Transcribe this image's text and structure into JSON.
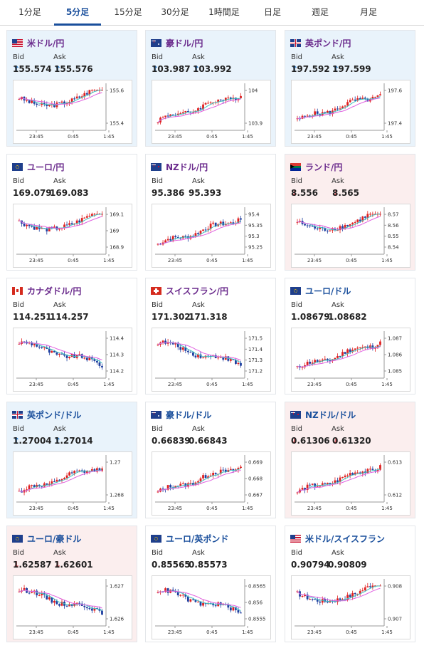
{
  "tabs": [
    {
      "label": "1分足",
      "active": false
    },
    {
      "label": "5分足",
      "active": true
    },
    {
      "label": "15分足",
      "active": false
    },
    {
      "label": "30分足",
      "active": false
    },
    {
      "label": "1時間足",
      "active": false
    },
    {
      "label": "日足",
      "active": false
    },
    {
      "label": "週足",
      "active": false
    },
    {
      "label": "月足",
      "active": false
    }
  ],
  "labels": {
    "bid": "Bid",
    "ask": "Ask"
  },
  "colors": {
    "up_card": "#e9f3fb",
    "down_card": "#fbeeee",
    "up_arrow": "#1e7bd6",
    "down_arrow": "#d9363e",
    "accent": "#1a4f9c",
    "candle_up": "#e02020",
    "candle_down": "#1f3fa0",
    "ma_pink": "#e060e0",
    "ma_teal": "#40c0c0"
  },
  "cards": [
    {
      "pair": "米ドル/円",
      "flag": "us",
      "bid": "155.574",
      "ask": "155.576",
      "dir": "up",
      "chart_data": {
        "type": "candlestick",
        "x_ticks": [
          "23:45",
          "0:45",
          "1:45"
        ],
        "y_ticks": [
          "155.6",
          "155.4"
        ],
        "ylim": [
          155.35,
          155.72
        ],
        "pattern": "vshape"
      }
    },
    {
      "pair": "豪ドル/円",
      "flag": "au",
      "bid": "103.987",
      "ask": "103.992",
      "dir": "up",
      "chart_data": {
        "type": "candlestick",
        "x_ticks": [
          "23:45",
          "0:45",
          "1:45"
        ],
        "y_ticks": [
          "104",
          "103.9"
        ],
        "ylim": [
          103.85,
          104.05
        ],
        "pattern": "uptrend"
      }
    },
    {
      "pair": "英ポンド/円",
      "flag": "gb",
      "bid": "197.592",
      "ask": "197.599",
      "dir": "up",
      "chart_data": {
        "type": "candlestick",
        "x_ticks": [
          "23:45",
          "0:45",
          "1:45"
        ],
        "y_ticks": [
          "197.6",
          "197.4"
        ],
        "ylim": [
          197.3,
          197.7
        ],
        "pattern": "uptrend"
      }
    },
    {
      "pair": "ユーロ/円",
      "flag": "eu",
      "bid": "169.079",
      "ask": "169.083",
      "dir": "none",
      "chart_data": {
        "type": "candlestick",
        "x_ticks": [
          "23:45",
          "0:45",
          "1:45"
        ],
        "y_ticks": [
          "169.1",
          "169",
          "168.9"
        ],
        "ylim": [
          168.85,
          169.15
        ],
        "pattern": "vshape"
      }
    },
    {
      "pair": "NZドル/円",
      "flag": "nz",
      "bid": "95.386",
      "ask": "95.393",
      "dir": "none",
      "chart_data": {
        "type": "candlestick",
        "x_ticks": [
          "23:45",
          "0:45",
          "1:45"
        ],
        "y_ticks": [
          "95.4",
          "95.35",
          "95.3",
          "95.25"
        ],
        "ylim": [
          95.22,
          95.42
        ],
        "pattern": "uptrend"
      }
    },
    {
      "pair": "ランド/円",
      "flag": "za",
      "bid": "8.556",
      "ask": "8.565",
      "dir": "down",
      "chart_data": {
        "type": "candlestick",
        "x_ticks": [
          "23:45",
          "0:45",
          "1:45"
        ],
        "y_ticks": [
          "8.57",
          "8.56",
          "8.55",
          "8.54"
        ],
        "ylim": [
          8.535,
          8.575
        ],
        "pattern": "vshape"
      }
    },
    {
      "pair": "カナダドル/円",
      "flag": "ca",
      "bid": "114.251",
      "ask": "114.257",
      "dir": "none",
      "chart_data": {
        "type": "candlestick",
        "x_ticks": [
          "23:45",
          "0:45",
          "1:45"
        ],
        "y_ticks": [
          "114.4",
          "114.3",
          "114.2"
        ],
        "ylim": [
          114.15,
          114.45
        ],
        "pattern": "downtrend"
      }
    },
    {
      "pair": "スイスフラン/円",
      "flag": "ch",
      "bid": "171.302",
      "ask": "171.318",
      "dir": "none",
      "chart_data": {
        "type": "candlestick",
        "x_ticks": [
          "23:45",
          "0:45",
          "1:45"
        ],
        "y_ticks": [
          "171.5",
          "171.4",
          "171.3",
          "171.2"
        ],
        "ylim": [
          171.15,
          171.55
        ],
        "pattern": "downtrend"
      }
    },
    {
      "pair": "ユーロ/ドル",
      "flag": "eu",
      "bid": "1.08679",
      "ask": "1.08682",
      "dir": "none",
      "usd": true,
      "chart_data": {
        "type": "candlestick",
        "x_ticks": [
          "23:45",
          "0:45",
          "1:45"
        ],
        "y_ticks": [
          "1.087",
          "1.086",
          "1.085"
        ],
        "ylim": [
          1.0845,
          1.0875
        ],
        "pattern": "uptrend"
      }
    },
    {
      "pair": "英ポンド/ドル",
      "flag": "gb",
      "bid": "1.27004",
      "ask": "1.27014",
      "dir": "up",
      "usd": true,
      "chart_data": {
        "type": "candlestick",
        "x_ticks": [
          "23:45",
          "0:45",
          "1:45"
        ],
        "y_ticks": [
          "1.27",
          "1.268"
        ],
        "ylim": [
          1.2665,
          1.2712
        ],
        "pattern": "uptrend"
      }
    },
    {
      "pair": "豪ドル/ドル",
      "flag": "au",
      "bid": "0.66839",
      "ask": "0.66843",
      "dir": "none",
      "usd": true,
      "chart_data": {
        "type": "candlestick",
        "x_ticks": [
          "23:45",
          "0:45",
          "1:45"
        ],
        "y_ticks": [
          "0.669",
          "0.668",
          "0.667"
        ],
        "ylim": [
          0.6665,
          0.6692
        ],
        "pattern": "uptrend"
      }
    },
    {
      "pair": "NZドル/ドル",
      "flag": "nz",
      "bid": "0.61306",
      "ask": "0.61320",
      "dir": "down",
      "usd": true,
      "chart_data": {
        "type": "candlestick",
        "x_ticks": [
          "23:45",
          "0:45",
          "1:45"
        ],
        "y_ticks": [
          "0.613",
          "0.612"
        ],
        "ylim": [
          0.6114,
          0.6134
        ],
        "pattern": "uptrend"
      }
    },
    {
      "pair": "ユーロ/豪ドル",
      "flag": "eu",
      "bid": "1.62587",
      "ask": "1.62601",
      "dir": "down",
      "usd": true,
      "chart_data": {
        "type": "candlestick",
        "x_ticks": [
          "23:45",
          "0:45",
          "1:45"
        ],
        "y_ticks": [
          "1.627",
          "1.626"
        ],
        "ylim": [
          1.6253,
          1.6275
        ],
        "pattern": "downtrend"
      }
    },
    {
      "pair": "ユーロ/英ポンド",
      "flag": "eu",
      "bid": "0.85565",
      "ask": "0.85573",
      "dir": "none",
      "usd": true,
      "chart_data": {
        "type": "candlestick",
        "x_ticks": [
          "23:45",
          "0:45",
          "1:45"
        ],
        "y_ticks": [
          "0.8565",
          "0.856",
          "0.8555"
        ],
        "ylim": [
          0.8553,
          0.8567
        ],
        "pattern": "downtrend"
      }
    },
    {
      "pair": "米ドル/スイスフラン",
      "flag": "us",
      "bid": "0.90794",
      "ask": "0.90809",
      "dir": "none",
      "usd": true,
      "chart_data": {
        "type": "candlestick",
        "x_ticks": [
          "23:45",
          "0:45",
          "1:45"
        ],
        "y_ticks": [
          "0.908",
          "0.907"
        ],
        "ylim": [
          0.9065,
          0.9085
        ],
        "pattern": "vshape"
      }
    }
  ]
}
